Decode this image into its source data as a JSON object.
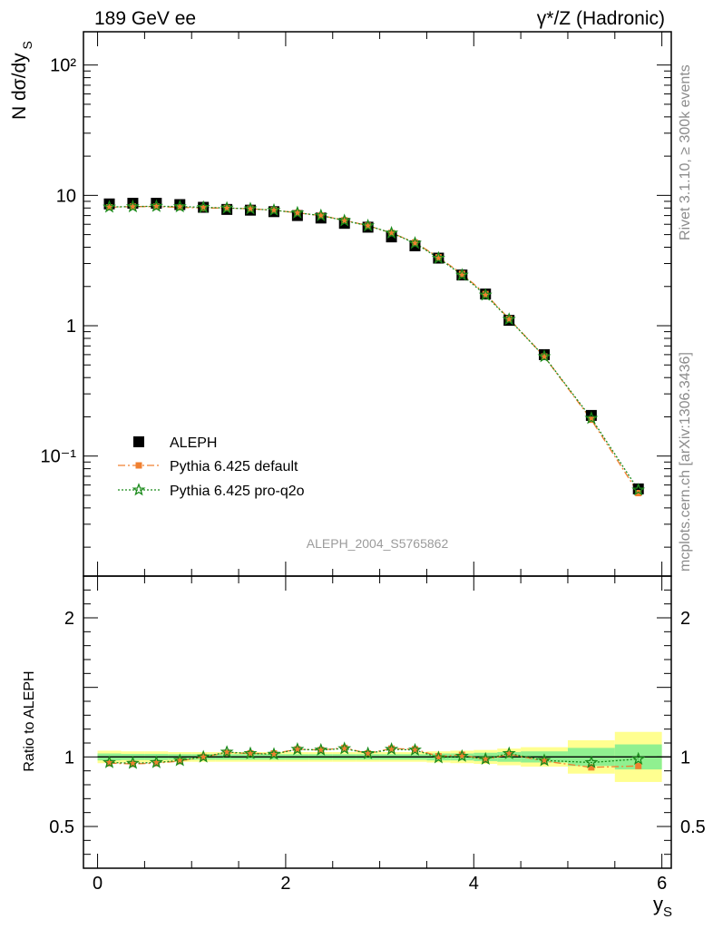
{
  "header": {
    "left_title": "189 GeV ee",
    "right_title": "γ*/Z (Hadronic)"
  },
  "side_text": {
    "rivet": "Rivet 3.1.10, ≥ 300k events",
    "mcplots": "mcplots.cern.ch [arXiv:1306.3436]"
  },
  "colors": {
    "data": "#000000",
    "default": "#f08030",
    "pro_q2o": "#1a8a1a",
    "band_inner": "#90f090",
    "band_outer": "#ffff90"
  },
  "chart_data": [
    {
      "type": "scatter",
      "panel": "main",
      "ylabel": "N dσ/dy_S",
      "yscale": "log",
      "ylim": [
        0.012,
        180
      ],
      "y_ticks": [
        0.1,
        1,
        10,
        100
      ],
      "y_tick_labels": [
        "10⁻¹",
        "1",
        "10",
        "10²"
      ],
      "annotation": "ALEPH_2004_S5765862",
      "legend": {
        "placement": "lower-left",
        "entries": [
          "ALEPH",
          "Pythia 6.425 default",
          "Pythia 6.425 pro-q2o"
        ]
      },
      "x": [
        0.125,
        0.375,
        0.625,
        0.875,
        1.125,
        1.375,
        1.625,
        1.875,
        2.125,
        2.375,
        2.625,
        2.875,
        3.125,
        3.375,
        3.625,
        3.875,
        4.125,
        4.375,
        4.75,
        5.25,
        5.75
      ],
      "series": [
        {
          "name": "ALEPH",
          "values": [
            8.6,
            8.7,
            8.7,
            8.5,
            8.1,
            7.8,
            7.7,
            7.5,
            7.0,
            6.7,
            6.1,
            5.7,
            4.8,
            4.1,
            3.3,
            2.45,
            1.75,
            1.1,
            0.6,
            0.205,
            0.056
          ]
        },
        {
          "name": "Pythia 6.425 default",
          "values": [
            8.1,
            8.2,
            8.2,
            8.1,
            8.0,
            8.0,
            7.9,
            7.7,
            7.35,
            7.0,
            6.45,
            5.85,
            5.15,
            4.35,
            3.35,
            2.5,
            1.75,
            1.13,
            0.58,
            0.19,
            0.052
          ]
        },
        {
          "name": "Pythia 6.425 pro-q2o",
          "values": [
            8.15,
            8.2,
            8.25,
            8.2,
            8.1,
            8.0,
            7.9,
            7.7,
            7.35,
            7.0,
            6.4,
            5.85,
            5.15,
            4.3,
            3.3,
            2.45,
            1.72,
            1.12,
            0.58,
            0.195,
            0.055
          ]
        }
      ]
    },
    {
      "type": "line",
      "panel": "ratio",
      "ylabel": "Ratio to ALEPH",
      "xlabel": "y_S",
      "xlim": [
        -0.15,
        6.1
      ],
      "ylim": [
        0.2,
        2.3
      ],
      "x_ticks": [
        0,
        2,
        4,
        6
      ],
      "x_tick_labels": [
        "0",
        "2",
        "4",
        "6"
      ],
      "y_ticks": [
        0.5,
        1,
        2
      ],
      "y_tick_labels": [
        "0.5",
        "1",
        "2"
      ],
      "bands": {
        "x_edges": [
          0.0,
          0.25,
          0.5,
          0.75,
          1.0,
          1.25,
          1.5,
          1.75,
          2.0,
          2.25,
          2.5,
          2.75,
          3.0,
          3.25,
          3.5,
          3.75,
          4.0,
          4.25,
          4.5,
          5.0,
          5.5,
          6.0
        ],
        "inner": [
          0.025,
          0.022,
          0.022,
          0.02,
          0.02,
          0.02,
          0.02,
          0.02,
          0.02,
          0.02,
          0.02,
          0.02,
          0.02,
          0.02,
          0.025,
          0.025,
          0.03,
          0.035,
          0.04,
          0.065,
          0.09
        ],
        "outer": [
          0.045,
          0.04,
          0.04,
          0.035,
          0.035,
          0.035,
          0.035,
          0.035,
          0.035,
          0.035,
          0.035,
          0.035,
          0.035,
          0.035,
          0.04,
          0.045,
          0.05,
          0.06,
          0.07,
          0.12,
          0.18
        ]
      },
      "x": [
        0.125,
        0.375,
        0.625,
        0.875,
        1.125,
        1.375,
        1.625,
        1.875,
        2.125,
        2.375,
        2.625,
        2.875,
        3.125,
        3.375,
        3.625,
        3.875,
        4.125,
        4.375,
        4.75,
        5.25,
        5.75
      ],
      "series": [
        {
          "name": "Pythia 6.425 default",
          "values": [
            0.955,
            0.95,
            0.955,
            0.97,
            1.0,
            1.03,
            1.025,
            1.025,
            1.055,
            1.05,
            1.065,
            1.025,
            1.06,
            1.055,
            1.005,
            1.015,
            0.98,
            1.02,
            0.97,
            0.925,
            0.935
          ]
        },
        {
          "name": "Pythia 6.425 pro-q2o",
          "values": [
            0.96,
            0.955,
            0.96,
            0.975,
            1.0,
            1.035,
            1.025,
            1.02,
            1.055,
            1.05,
            1.06,
            1.025,
            1.055,
            1.05,
            0.995,
            1.005,
            0.985,
            1.025,
            0.975,
            0.96,
            0.985
          ]
        }
      ]
    }
  ]
}
